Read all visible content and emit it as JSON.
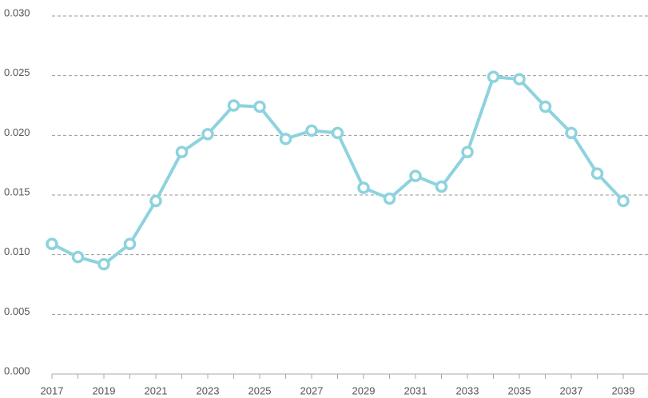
{
  "chart_data": {
    "type": "line",
    "categories": [
      "2017",
      null,
      "2019",
      null,
      "2021",
      null,
      "2023",
      null,
      "2025",
      null,
      "2027",
      null,
      "2029",
      null,
      "2031",
      null,
      "2033",
      null,
      "2035",
      null,
      "2037",
      null,
      "2039"
    ],
    "values": [
      0.0109,
      0.0098,
      0.0092,
      0.0109,
      0.0145,
      0.0186,
      0.0201,
      0.0225,
      0.0224,
      0.0197,
      0.0204,
      0.0202,
      0.0156,
      0.0147,
      0.0166,
      0.0157,
      0.0186,
      0.0249,
      0.0247,
      0.0224,
      0.0202,
      0.0168,
      0.0145
    ],
    "color": "#8dd3de",
    "ylim": [
      0,
      0.03
    ],
    "yticks": [
      {
        "value": 0,
        "label": "0.000"
      },
      {
        "value": 0.005,
        "label": "0.005"
      },
      {
        "value": 0.01,
        "label": "0.010"
      },
      {
        "value": 0.015,
        "label": "0.015"
      },
      {
        "value": 0.02,
        "label": "0.020"
      },
      {
        "value": 0.025,
        "label": "0.025"
      },
      {
        "value": 0.03,
        "label": "0.030"
      }
    ],
    "grid": true
  }
}
